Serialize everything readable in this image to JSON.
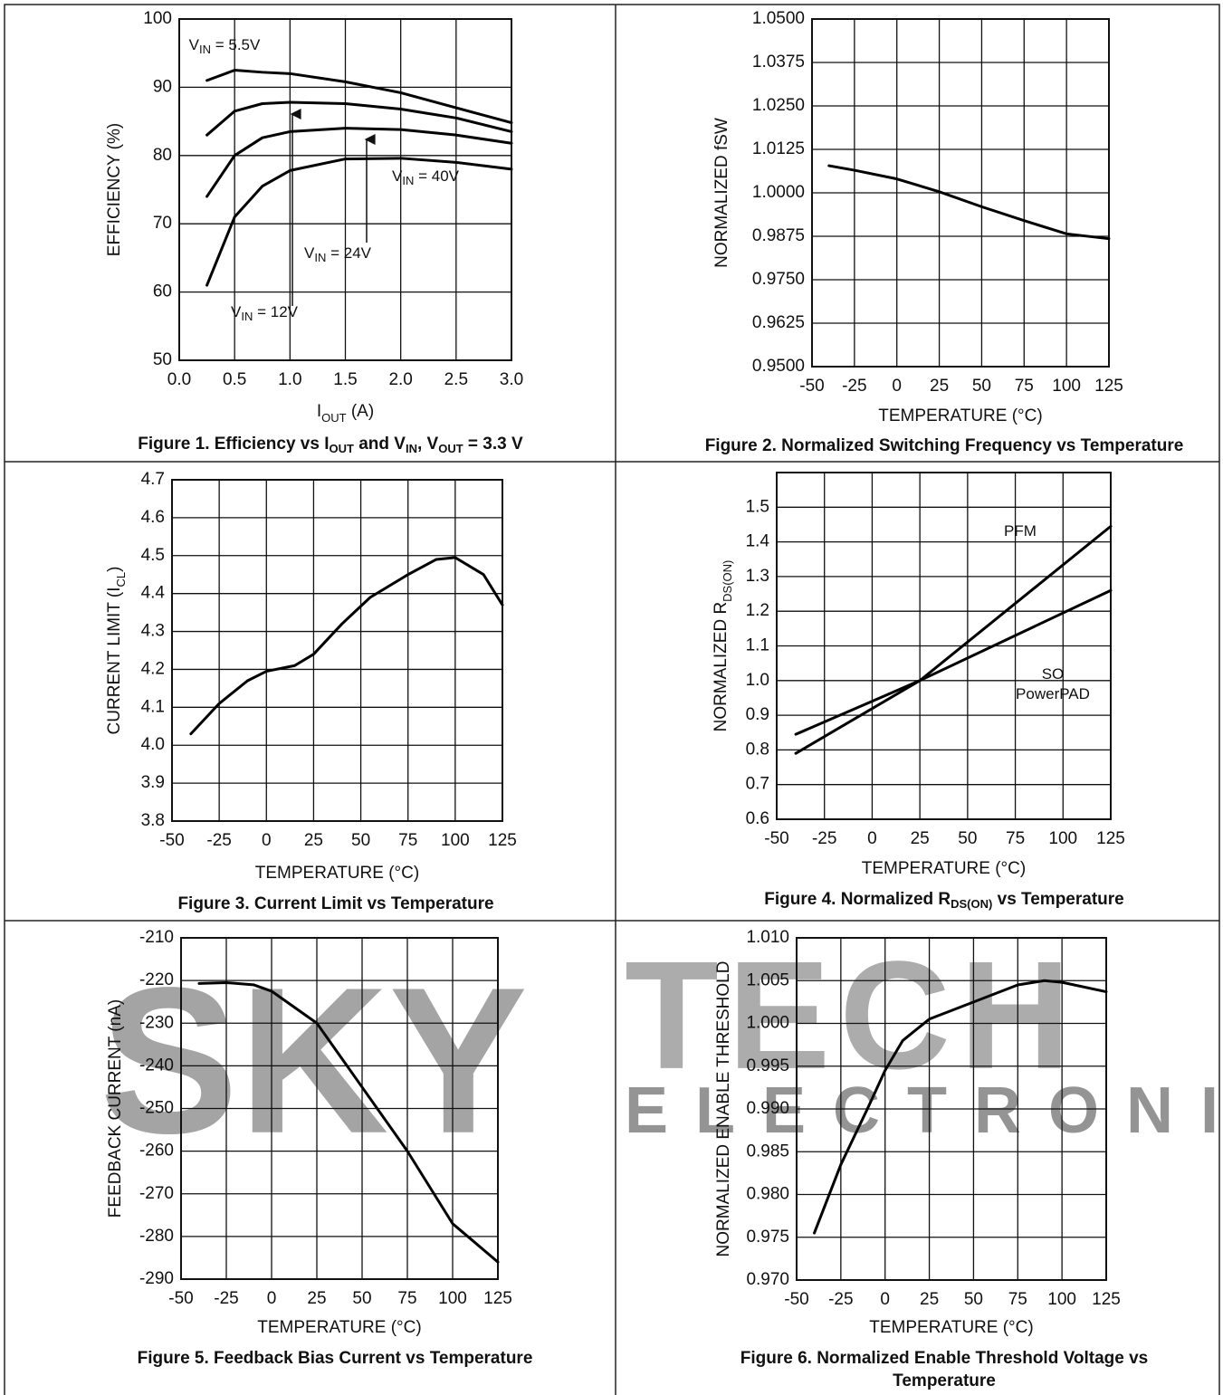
{
  "chart_data": [
    {
      "type": "line",
      "title": [
        "Figure 1. Efficiency vs I",
        "OUT",
        " and V",
        "IN",
        ", V",
        "OUT",
        " = 3.3 V"
      ],
      "xlabel": [
        "I",
        "OUT",
        " (A)"
      ],
      "ylabel": "EFFICIENCY (%)",
      "x": [
        0.25,
        0.5,
        0.75,
        1,
        1.5,
        2,
        2.5,
        3
      ],
      "series": [
        {
          "name": [
            "V",
            "IN",
            " = 5.5V"
          ],
          "color": "#000000",
          "values": [
            91,
            92.5,
            92.2,
            92,
            90.8,
            89.2,
            87,
            84.8
          ]
        },
        {
          "name": [
            "V",
            "IN",
            " = 12V"
          ],
          "color": "#000000",
          "values": [
            83,
            86.5,
            87.6,
            87.8,
            87.6,
            86.8,
            85.5,
            83.5
          ]
        },
        {
          "name": [
            "V",
            "IN",
            " = 24V"
          ],
          "color": "#000000",
          "values": [
            74,
            80,
            82.6,
            83.5,
            84,
            83.8,
            83,
            81.8
          ]
        },
        {
          "name": [
            "V",
            "IN",
            " = 40V"
          ],
          "color": "#000000",
          "values": [
            61,
            71,
            75.5,
            77.8,
            79.5,
            79.6,
            79,
            78
          ]
        }
      ],
      "xlim": [
        0,
        3
      ],
      "xticks": [
        {
          "value": 0,
          "label": "0.0"
        },
        0.5,
        {
          "value": 1,
          "label": "1.0"
        },
        1.5,
        {
          "value": 2,
          "label": "2.0"
        },
        2.5,
        {
          "value": 3,
          "label": "3.0"
        }
      ],
      "ylim": [
        50,
        100
      ],
      "yticks": [
        50,
        60,
        70,
        80,
        90,
        100
      ],
      "grid": true
    },
    {
      "type": "line",
      "title": "Figure 2. Normalized Switching Frequency vs Temperature",
      "xlabel": "TEMPERATURE (°C)",
      "ylabel": "NORMALIZED fSW",
      "x": [
        -40,
        -25,
        0,
        25,
        50,
        75,
        100,
        125
      ],
      "series": [
        {
          "color": "#000000",
          "values": [
            1.0078,
            1.0065,
            1.004,
            1.0003,
            0.996,
            0.992,
            0.9882,
            0.9868
          ]
        }
      ],
      "xlim": [
        -50,
        125
      ],
      "xticks": [
        -50,
        -25,
        0,
        25,
        50,
        75,
        100,
        125
      ],
      "ylim": [
        0.95,
        1.05
      ],
      "yticks": [
        {
          "value": 0.95,
          "label": "0.9500"
        },
        0.9625,
        {
          "value": 0.975,
          "label": "0.9750"
        },
        0.9875,
        {
          "value": 1,
          "label": "1.0000"
        },
        1.0125,
        {
          "value": 1.025,
          "label": "1.0250"
        },
        1.0375,
        {
          "value": 1.05,
          "label": "1.0500"
        }
      ],
      "grid": true
    },
    {
      "type": "line",
      "title": "Figure 3. Current Limit vs Temperature",
      "xlabel": "TEMPERATURE (°C)",
      "ylabel": [
        "CURRENT LIMIT (I",
        "CL",
        ")"
      ],
      "x": [
        -40,
        -25,
        -10,
        0,
        15,
        25,
        40,
        55,
        75,
        90,
        100,
        115,
        125
      ],
      "series": [
        {
          "color": "#000000",
          "values": [
            4.03,
            4.11,
            4.17,
            4.195,
            4.21,
            4.24,
            4.32,
            4.39,
            4.45,
            4.49,
            4.495,
            4.45,
            4.37
          ]
        }
      ],
      "xlim": [
        -50,
        125
      ],
      "xticks": [
        -50,
        -25,
        0,
        25,
        50,
        75,
        100,
        125
      ],
      "ylim": [
        3.8,
        4.7
      ],
      "yticks": [
        3.8,
        3.9,
        {
          "value": 4,
          "label": "4.0"
        },
        4.1,
        4.2,
        4.3,
        4.4,
        4.5,
        4.6,
        4.7
      ],
      "grid": true
    },
    {
      "type": "line",
      "title": [
        "Figure 4. Normalized R",
        "DS(ON)",
        " vs Temperature"
      ],
      "xlabel": "TEMPERATURE (°C)",
      "ylabel": [
        "NORMALIZED R",
        "DS(ON)"
      ],
      "x": [
        -40,
        25,
        125
      ],
      "series": [
        {
          "name": "PFM",
          "color": "#000000",
          "values": [
            0.79,
            1,
            1.445
          ]
        },
        {
          "name": "SO PowerPAD",
          "color": "#000000",
          "values": [
            0.845,
            1,
            1.26
          ]
        }
      ],
      "xlim": [
        -50,
        125
      ],
      "xticks": [
        -50,
        -25,
        0,
        25,
        50,
        75,
        100,
        125
      ],
      "ylim": [
        0.6,
        1.6
      ],
      "yticks": [
        0.6,
        0.7,
        0.8,
        0.9,
        {
          "value": 1,
          "label": "1.0"
        },
        1.1,
        1.2,
        1.3,
        1.4,
        1.5
      ],
      "grid": true
    },
    {
      "type": "line",
      "title": "Figure 5. Feedback Bias Current vs Temperature",
      "xlabel": "TEMPERATURE (°C)",
      "ylabel": "FEEDBACK CURRENT (nA)",
      "x": [
        -40,
        -25,
        -10,
        0,
        25,
        50,
        75,
        100,
        125
      ],
      "series": [
        {
          "color": "#000000",
          "values": [
            -220.7,
            -220.5,
            -221,
            -222.5,
            -230,
            -245,
            -260,
            -277,
            -286
          ]
        }
      ],
      "xlim": [
        -50,
        125
      ],
      "xticks": [
        -50,
        -25,
        0,
        25,
        50,
        75,
        100,
        125
      ],
      "ylim": [
        -290,
        -210
      ],
      "yticks": [
        -290,
        -280,
        -270,
        -260,
        -250,
        -240,
        -230,
        -220,
        -210
      ],
      "grid": true
    },
    {
      "type": "line",
      "title": "Figure 6. Normalized Enable Threshold Voltage vs Temperature",
      "xlabel": "TEMPERATURE (°C)",
      "ylabel": "NORMALIZED ENABLE THRESHOLD",
      "x": [
        -40,
        -25,
        -10,
        0,
        10,
        25,
        50,
        75,
        90,
        100,
        125
      ],
      "series": [
        {
          "color": "#000000",
          "values": [
            0.9755,
            0.9835,
            0.99,
            0.9945,
            0.998,
            1.0005,
            1.0025,
            1.0045,
            1.005,
            1.0048,
            1.0037
          ]
        }
      ],
      "xlim": [
        -50,
        125
      ],
      "xticks": [
        -50,
        -25,
        0,
        25,
        50,
        75,
        100,
        125
      ],
      "ylim": [
        0.97,
        1.01
      ],
      "yticks": [
        {
          "value": 0.97,
          "label": "0.970"
        },
        0.975,
        {
          "value": 0.98,
          "label": "0.980"
        },
        0.985,
        {
          "value": 0.99,
          "label": "0.990"
        },
        0.995,
        {
          "value": 1,
          "label": "1.000"
        },
        1.005,
        {
          "value": 1.01,
          "label": "1.010"
        }
      ],
      "grid": true
    }
  ],
  "watermark": {
    "brand": [
      "SKY",
      "TECH"
    ],
    "tagline": "ELECTRONIC"
  }
}
